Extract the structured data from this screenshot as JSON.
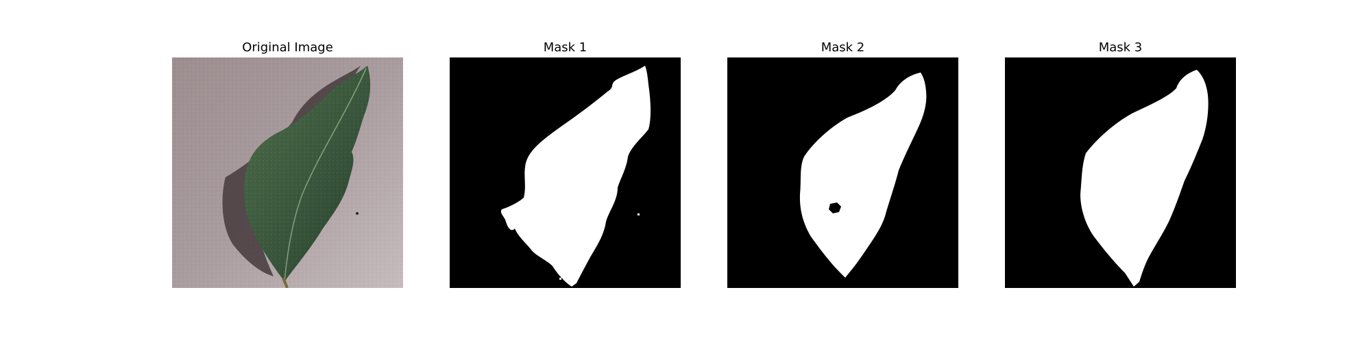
{
  "figure": {
    "panels": [
      {
        "title": "Original Image",
        "kind": "photo"
      },
      {
        "title": "Mask 1",
        "kind": "mask"
      },
      {
        "title": "Mask 2",
        "kind": "mask"
      },
      {
        "title": "Mask 3",
        "kind": "mask"
      }
    ]
  },
  "colors": {
    "background_stone": "#a89b9d",
    "leaf": "#3b5a38",
    "mask_background": "#000000",
    "mask_foreground": "#ffffff"
  }
}
